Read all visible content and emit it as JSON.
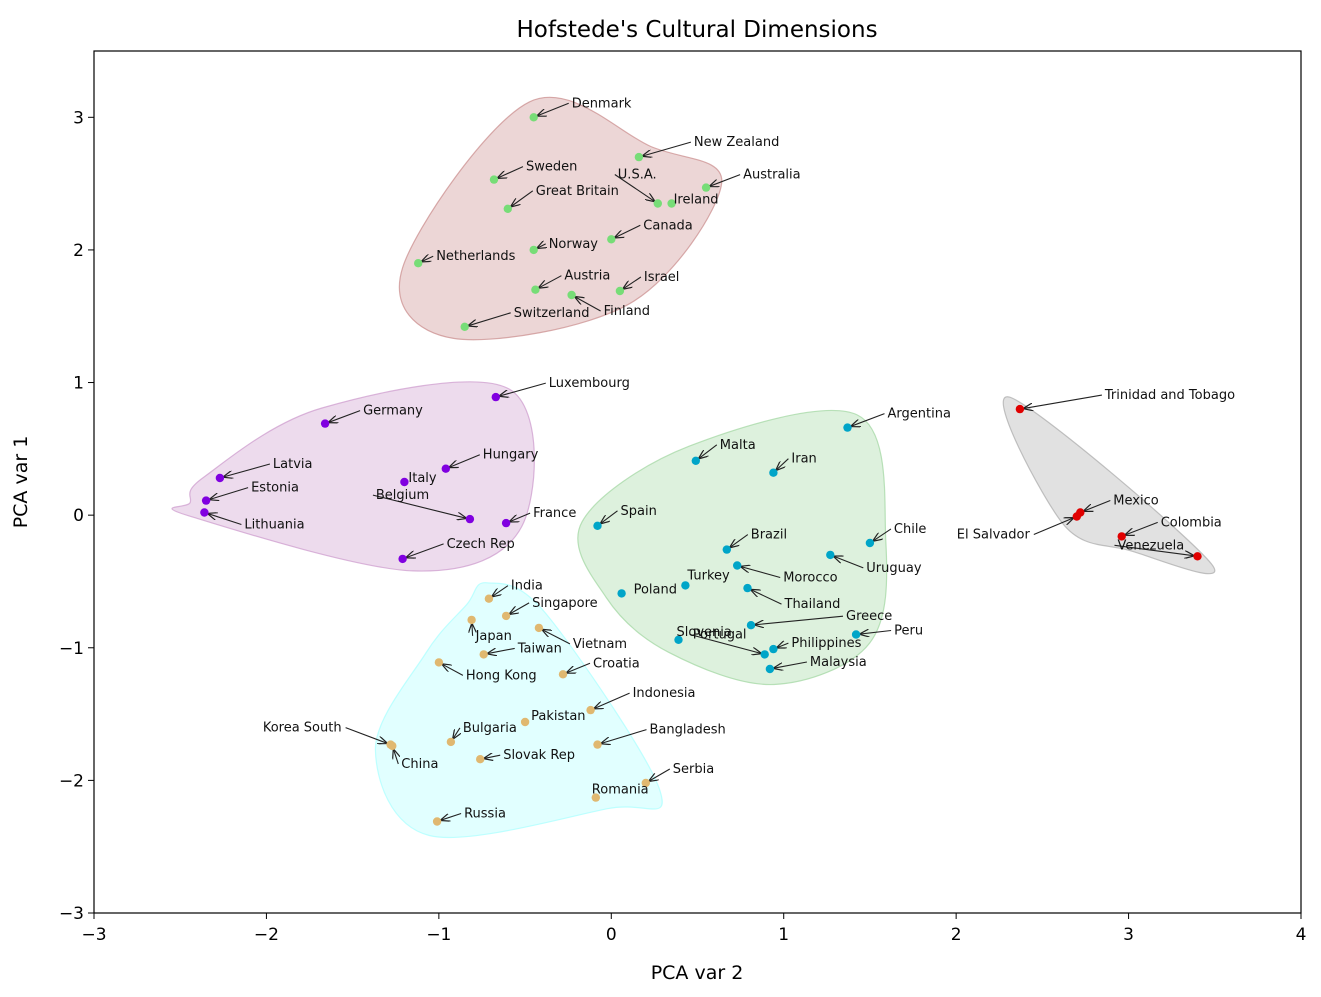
{
  "chart_data": {
    "type": "scatter",
    "title": "Hofstede's Cultural Dimensions",
    "xlabel": "PCA var 2",
    "ylabel": "PCA var 1",
    "xlim": [
      -3,
      4
    ],
    "ylim": [
      -3,
      3.5
    ],
    "xticks": [
      -3,
      -2,
      -1,
      0,
      1,
      2,
      3,
      4
    ],
    "yticks": [
      -3,
      -2,
      -1,
      0,
      1,
      2,
      3
    ],
    "xtick_labels": [
      "−3",
      "−2",
      "−1",
      "0",
      "1",
      "2",
      "3",
      "4"
    ],
    "ytick_labels": [
      "−3",
      "−2",
      "−1",
      "0",
      "1",
      "2",
      "3"
    ],
    "grid": false,
    "legend": "none",
    "clusters": [
      {
        "color": "#77dd77",
        "hull_fill": "#c98a8a",
        "points": [
          {
            "label": "Denmark",
            "x": -0.45,
            "y": 3.0
          },
          {
            "label": "New Zealand",
            "x": 0.16,
            "y": 2.7
          },
          {
            "label": "Sweden",
            "x": -0.68,
            "y": 2.53
          },
          {
            "label": "Australia",
            "x": 0.55,
            "y": 2.47
          },
          {
            "label": "U.S.A.",
            "x": 0.27,
            "y": 2.35
          },
          {
            "label": "Ireland",
            "x": 0.35,
            "y": 2.35
          },
          {
            "label": "Great Britain",
            "x": -0.6,
            "y": 2.31
          },
          {
            "label": "Canada",
            "x": 0.0,
            "y": 2.08
          },
          {
            "label": "Norway",
            "x": -0.45,
            "y": 2.0
          },
          {
            "label": "Netherlands",
            "x": -1.12,
            "y": 1.9
          },
          {
            "label": "Austria",
            "x": -0.44,
            "y": 1.7
          },
          {
            "label": "Israel",
            "x": 0.05,
            "y": 1.69
          },
          {
            "label": "Finland",
            "x": -0.23,
            "y": 1.66
          },
          {
            "label": "Switzerland",
            "x": -0.85,
            "y": 1.42
          }
        ]
      },
      {
        "color": "#8000e0",
        "hull_fill": "#cc99cc",
        "points": [
          {
            "label": "Luxembourg",
            "x": -0.67,
            "y": 0.89
          },
          {
            "label": "Germany",
            "x": -1.66,
            "y": 0.69
          },
          {
            "label": "Hungary",
            "x": -0.96,
            "y": 0.35
          },
          {
            "label": "Latvia",
            "x": -2.27,
            "y": 0.28
          },
          {
            "label": "Italy",
            "x": -1.2,
            "y": 0.25
          },
          {
            "label": "Estonia",
            "x": -2.35,
            "y": 0.11
          },
          {
            "label": "Belgium",
            "x": -0.82,
            "y": -0.03
          },
          {
            "label": "France",
            "x": -0.61,
            "y": -0.06
          },
          {
            "label": "Lithuania",
            "x": -2.36,
            "y": 0.02
          },
          {
            "label": "Czech Rep",
            "x": -1.21,
            "y": -0.33
          }
        ]
      },
      {
        "color": "#00a5c8",
        "hull_fill": "#9fd69f",
        "points": [
          {
            "label": "Argentina",
            "x": 1.37,
            "y": 0.66
          },
          {
            "label": "Malta",
            "x": 0.49,
            "y": 0.41
          },
          {
            "label": "Iran",
            "x": 0.94,
            "y": 0.32
          },
          {
            "label": "Spain",
            "x": -0.08,
            "y": -0.08
          },
          {
            "label": "Chile",
            "x": 1.5,
            "y": -0.21
          },
          {
            "label": "Brazil",
            "x": 0.67,
            "y": -0.26
          },
          {
            "label": "Uruguay",
            "x": 1.27,
            "y": -0.3
          },
          {
            "label": "Morocco",
            "x": 0.73,
            "y": -0.38
          },
          {
            "label": "Turkey",
            "x": 0.43,
            "y": -0.53
          },
          {
            "label": "Thailand",
            "x": 0.79,
            "y": -0.55
          },
          {
            "label": "Poland",
            "x": 0.06,
            "y": -0.59
          },
          {
            "label": "Greece",
            "x": 0.81,
            "y": -0.83
          },
          {
            "label": "Peru",
            "x": 1.42,
            "y": -0.9
          },
          {
            "label": "Slovenia",
            "x": 0.39,
            "y": -0.94
          },
          {
            "label": "Philippines",
            "x": 0.94,
            "y": -1.01
          },
          {
            "label": "Portugal",
            "x": 0.89,
            "y": -1.05
          },
          {
            "label": "Malaysia",
            "x": 0.92,
            "y": -1.16
          }
        ]
      },
      {
        "color": "#e0b870",
        "hull_fill": "#a8ffff",
        "points": [
          {
            "label": "India",
            "x": -0.71,
            "y": -0.63
          },
          {
            "label": "Singapore",
            "x": -0.61,
            "y": -0.76
          },
          {
            "label": "Japan",
            "x": -0.81,
            "y": -0.79
          },
          {
            "label": "Vietnam",
            "x": -0.42,
            "y": -0.85
          },
          {
            "label": "Taiwan",
            "x": -0.74,
            "y": -1.05
          },
          {
            "label": "Hong Kong",
            "x": -1.0,
            "y": -1.11
          },
          {
            "label": "Croatia",
            "x": -0.28,
            "y": -1.2
          },
          {
            "label": "Indonesia",
            "x": -0.12,
            "y": -1.47
          },
          {
            "label": "Pakistan",
            "x": -0.5,
            "y": -1.56
          },
          {
            "label": "Korea South",
            "x": -1.28,
            "y": -1.73
          },
          {
            "label": "Bulgaria",
            "x": -0.93,
            "y": -1.71
          },
          {
            "label": "Bangladesh",
            "x": -0.08,
            "y": -1.73
          },
          {
            "label": "China",
            "x": -1.27,
            "y": -1.74
          },
          {
            "label": "Slovak Rep",
            "x": -0.76,
            "y": -1.84
          },
          {
            "label": "Serbia",
            "x": 0.2,
            "y": -2.02
          },
          {
            "label": "Romania",
            "x": -0.09,
            "y": -2.13
          },
          {
            "label": "Russia",
            "x": -1.01,
            "y": -2.31
          }
        ]
      },
      {
        "color": "#e00000",
        "hull_fill": "#a9a9a9",
        "points": [
          {
            "label": "Trinidad and Tobago",
            "x": 2.37,
            "y": 0.8
          },
          {
            "label": "Mexico",
            "x": 2.72,
            "y": 0.02
          },
          {
            "label": "El Salvador",
            "x": 2.7,
            "y": -0.01
          },
          {
            "label": "Colombia",
            "x": 2.96,
            "y": -0.16
          },
          {
            "label": "Venezuela",
            "x": 3.4,
            "y": -0.31
          }
        ]
      }
    ]
  }
}
